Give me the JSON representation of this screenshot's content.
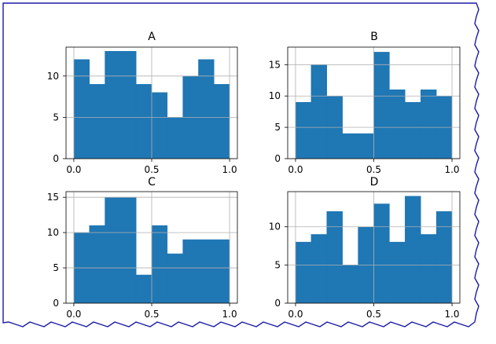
{
  "colors": {
    "bar": "#1f77b4",
    "grid": "#b0b0b0",
    "axis": "#000000",
    "frame_edge": "#1a1aa6",
    "background": "#ffffff"
  },
  "chart_data": [
    {
      "type": "bar",
      "title": "A",
      "bin_edges": [
        0.0,
        0.1,
        0.2,
        0.3,
        0.4,
        0.5,
        0.6,
        0.7,
        0.8,
        0.9,
        1.0
      ],
      "values": [
        12,
        9,
        13,
        13,
        9,
        8,
        5,
        10,
        12,
        9
      ],
      "xlim": [
        -0.05,
        1.05
      ],
      "ylim": [
        0,
        13.5
      ],
      "xticks": [
        0.0,
        0.5,
        1.0
      ],
      "xticklabels": [
        "0.0",
        "0.5",
        "1.0"
      ],
      "yticks": [
        0,
        5,
        10
      ],
      "yticklabels": [
        "0",
        "5",
        "10"
      ],
      "grid": true
    },
    {
      "type": "bar",
      "title": "B",
      "bin_edges": [
        0.0,
        0.1,
        0.2,
        0.3,
        0.4,
        0.5,
        0.6,
        0.7,
        0.8,
        0.9,
        1.0
      ],
      "values": [
        9,
        15,
        10,
        4,
        4,
        17,
        11,
        9,
        11,
        10
      ],
      "xlim": [
        -0.05,
        1.05
      ],
      "ylim": [
        0,
        17.8
      ],
      "xticks": [
        0.0,
        0.5,
        1.0
      ],
      "xticklabels": [
        "0.0",
        "0.5",
        "1.0"
      ],
      "yticks": [
        0,
        5,
        10,
        15
      ],
      "yticklabels": [
        "0",
        "5",
        "10",
        "15"
      ],
      "grid": true
    },
    {
      "type": "bar",
      "title": "C",
      "bin_edges": [
        0.0,
        0.1,
        0.2,
        0.3,
        0.4,
        0.5,
        0.6,
        0.7,
        0.8,
        0.9,
        1.0
      ],
      "values": [
        10,
        11,
        15,
        15,
        4,
        11,
        7,
        9,
        9,
        9
      ],
      "xlim": [
        -0.05,
        1.05
      ],
      "ylim": [
        0,
        15.8
      ],
      "xticks": [
        0.0,
        0.5,
        1.0
      ],
      "xticklabels": [
        "0.0",
        "0.5",
        "1.0"
      ],
      "yticks": [
        0,
        5,
        10,
        15
      ],
      "yticklabels": [
        "0",
        "5",
        "10",
        "15"
      ],
      "grid": true
    },
    {
      "type": "bar",
      "title": "D",
      "bin_edges": [
        0.0,
        0.1,
        0.2,
        0.3,
        0.4,
        0.5,
        0.6,
        0.7,
        0.8,
        0.9,
        1.0
      ],
      "values": [
        8,
        9,
        12,
        5,
        10,
        13,
        8,
        14,
        9,
        12
      ],
      "xlim": [
        -0.05,
        1.05
      ],
      "ylim": [
        0,
        14.6
      ],
      "xticks": [
        0.0,
        0.5,
        1.0
      ],
      "xticklabels": [
        "0.0",
        "0.5",
        "1.0"
      ],
      "yticks": [
        0,
        5,
        10
      ],
      "yticklabels": [
        "0",
        "5",
        "10"
      ],
      "grid": true
    }
  ]
}
